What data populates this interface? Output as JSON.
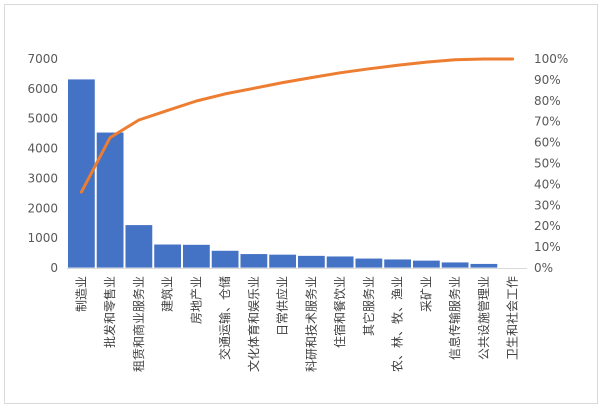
{
  "chart_data": {
    "type": "bar+line",
    "categories": [
      "制造业",
      "批发和零售业",
      "租赁和商业服务业",
      "建筑业",
      "房地产业",
      "交通运输、仓储",
      "文化体育和娱乐业",
      "日常供应业",
      "科研和技术服务业",
      "住宿和餐饮业",
      "其它服务业",
      "农、林、牧、渔业",
      "采矿业",
      "信息传输服务业",
      "公共设施管理业",
      "卫生和社会工作"
    ],
    "series": [
      {
        "type": "bar",
        "axis": "left",
        "color": "#4472C4",
        "values": [
          6330,
          4550,
          1450,
          800,
          790,
          590,
          480,
          460,
          420,
          400,
          330,
          300,
          260,
          200,
          150,
          10
        ]
      },
      {
        "type": "line",
        "axis": "right",
        "color": "#ED7D31",
        "values": [
          36.3,
          62.4,
          70.8,
          75.4,
          79.9,
          83.3,
          86.0,
          88.7,
          91.1,
          93.4,
          95.3,
          97.0,
          98.5,
          99.6,
          100,
          100
        ]
      }
    ],
    "y_left": {
      "min": 0,
      "max": 7000,
      "step": 1000,
      "ticks": [
        "0",
        "1000",
        "2000",
        "3000",
        "4000",
        "5000",
        "6000",
        "7000"
      ]
    },
    "y_right": {
      "min": 0,
      "max": 100,
      "step": 10,
      "ticks": [
        "0%",
        "10%",
        "20%",
        "30%",
        "40%",
        "50%",
        "60%",
        "70%",
        "80%",
        "90%",
        "100%"
      ]
    },
    "grid": false,
    "legend": "none"
  }
}
